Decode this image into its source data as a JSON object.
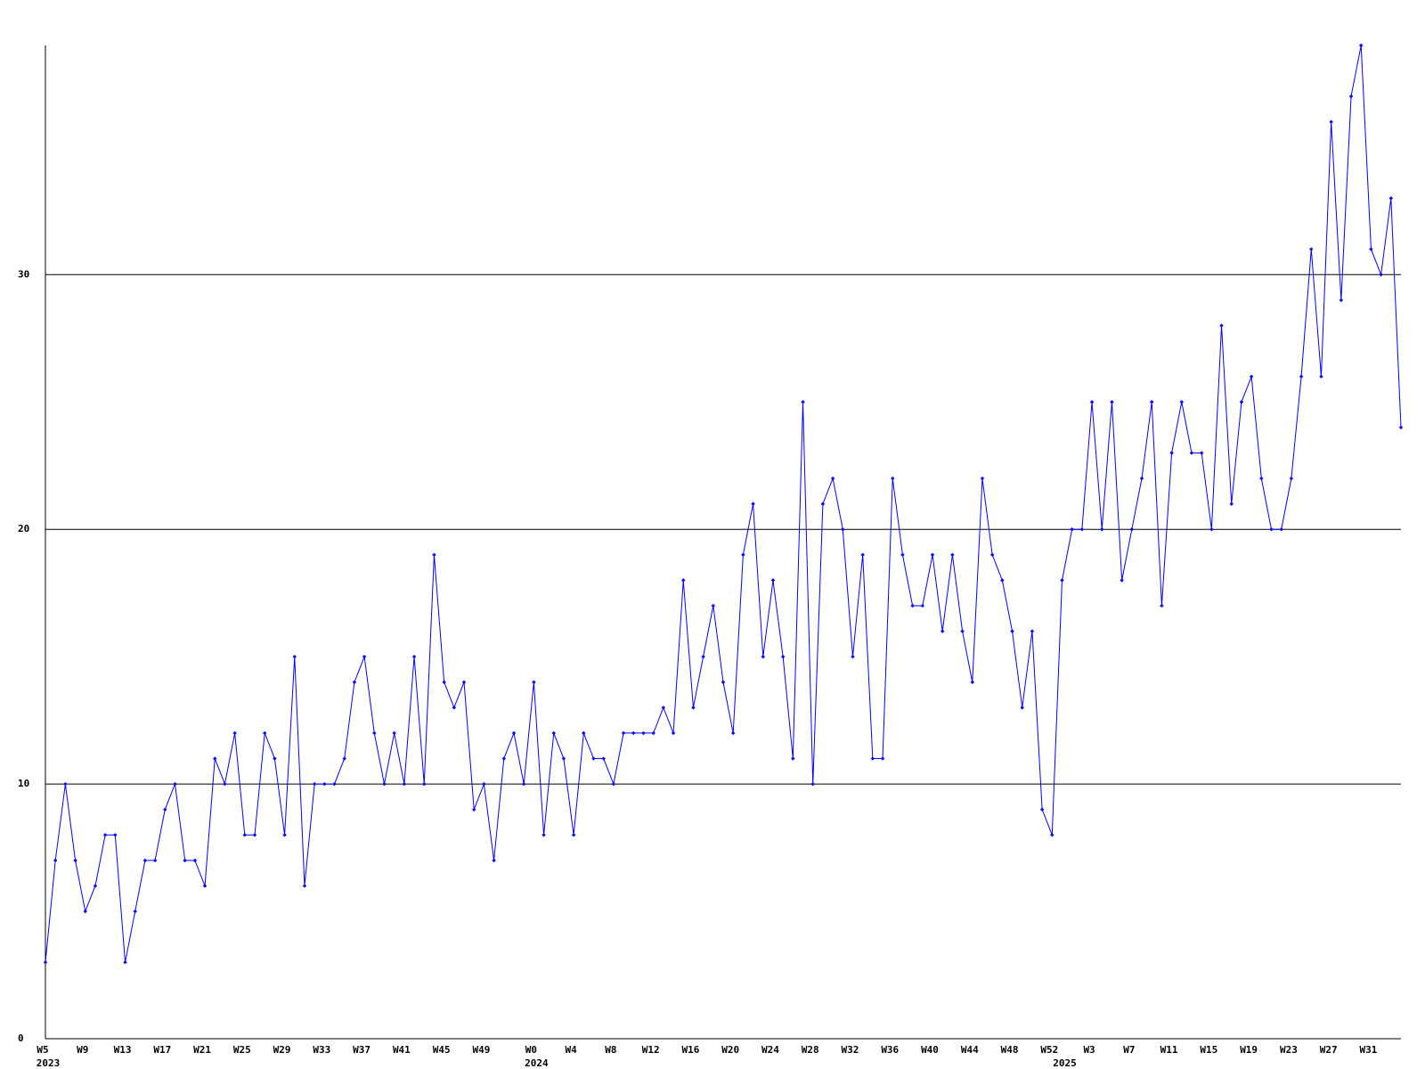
{
  "chart_data": {
    "type": "line",
    "color": "#0000ff",
    "grid": true,
    "categories": [
      "W5",
      null,
      null,
      null,
      "W9",
      null,
      null,
      null,
      "W13",
      null,
      null,
      null,
      "W17",
      null,
      null,
      null,
      "W21",
      null,
      null,
      null,
      "W25",
      null,
      null,
      null,
      "W29",
      null,
      null,
      null,
      "W33",
      null,
      null,
      null,
      "W37",
      null,
      null,
      null,
      "W41",
      null,
      null,
      null,
      "W45",
      null,
      null,
      null,
      "W49",
      null,
      null,
      null,
      null,
      "W0",
      null,
      null,
      null,
      "W4",
      null,
      null,
      null,
      "W8",
      null,
      null,
      null,
      "W12",
      null,
      null,
      null,
      "W16",
      null,
      null,
      null,
      "W20",
      null,
      null,
      null,
      "W24",
      null,
      null,
      null,
      "W28",
      null,
      null,
      null,
      "W32",
      null,
      null,
      null,
      "W36",
      null,
      null,
      null,
      "W40",
      null,
      null,
      null,
      "W44",
      null,
      null,
      null,
      "W48",
      null,
      null,
      null,
      "W52",
      null,
      null,
      null,
      "W3",
      null,
      null,
      null,
      "W7",
      null,
      null,
      null,
      "W11",
      null,
      null,
      null,
      "W15",
      null,
      null,
      null,
      "W19",
      null,
      null,
      null,
      "W23",
      null,
      null,
      null,
      "W27",
      null,
      null,
      null,
      "W31",
      null,
      null,
      null
    ],
    "year_labels": [
      "2023",
      null,
      null,
      null,
      null,
      null,
      null,
      null,
      null,
      null,
      null,
      null,
      null,
      null,
      null,
      null,
      null,
      null,
      null,
      null,
      null,
      null,
      null,
      null,
      null,
      null,
      null,
      null,
      null,
      null,
      null,
      null,
      null,
      null,
      null,
      null,
      null,
      null,
      null,
      null,
      null,
      null,
      null,
      null,
      null,
      null,
      null,
      null,
      null,
      "2024",
      null,
      null,
      null,
      null,
      null,
      null,
      null,
      null,
      null,
      null,
      null,
      null,
      null,
      null,
      null,
      null,
      null,
      null,
      null,
      null,
      null,
      null,
      null,
      null,
      null,
      null,
      null,
      null,
      null,
      null,
      null,
      null,
      null,
      null,
      null,
      null,
      null,
      null,
      null,
      null,
      null,
      null,
      null,
      null,
      null,
      null,
      null,
      null,
      null,
      null,
      null,
      null,
      "2025",
      null,
      null,
      null,
      null,
      null,
      null,
      null,
      null,
      null,
      null,
      null,
      null,
      null,
      null,
      null,
      null,
      null,
      null,
      null,
      null,
      null,
      null,
      null,
      null,
      null,
      null,
      null,
      null,
      null,
      null,
      null,
      null,
      null,
      null
    ],
    "values": [
      3,
      7,
      10,
      7,
      5,
      6,
      8,
      8,
      3,
      5,
      7,
      7,
      9,
      10,
      7,
      7,
      6,
      11,
      10,
      12,
      8,
      8,
      12,
      11,
      8,
      15,
      6,
      10,
      10,
      10,
      11,
      14,
      15,
      12,
      10,
      12,
      10,
      15,
      10,
      19,
      14,
      13,
      14,
      9,
      10,
      7,
      11,
      12,
      10,
      14,
      8,
      12,
      11,
      8,
      12,
      11,
      11,
      10,
      12,
      12,
      12,
      12,
      13,
      12,
      18,
      13,
      15,
      17,
      14,
      12,
      19,
      21,
      15,
      18,
      15,
      11,
      25,
      10,
      21,
      22,
      20,
      15,
      19,
      11,
      11,
      22,
      19,
      17,
      17,
      19,
      16,
      19,
      16,
      14,
      22,
      19,
      18,
      16,
      13,
      16,
      9,
      8,
      18,
      20,
      20,
      25,
      20,
      25,
      18,
      20,
      22,
      25,
      17,
      23,
      25,
      23,
      23,
      20,
      28,
      21,
      25,
      26,
      22,
      20,
      20,
      22,
      26,
      31,
      26,
      36,
      29,
      37,
      39,
      31,
      30,
      33,
      24
    ],
    "ylim": [
      0,
      39
    ],
    "yticks": [
      0,
      10,
      20,
      30
    ]
  }
}
